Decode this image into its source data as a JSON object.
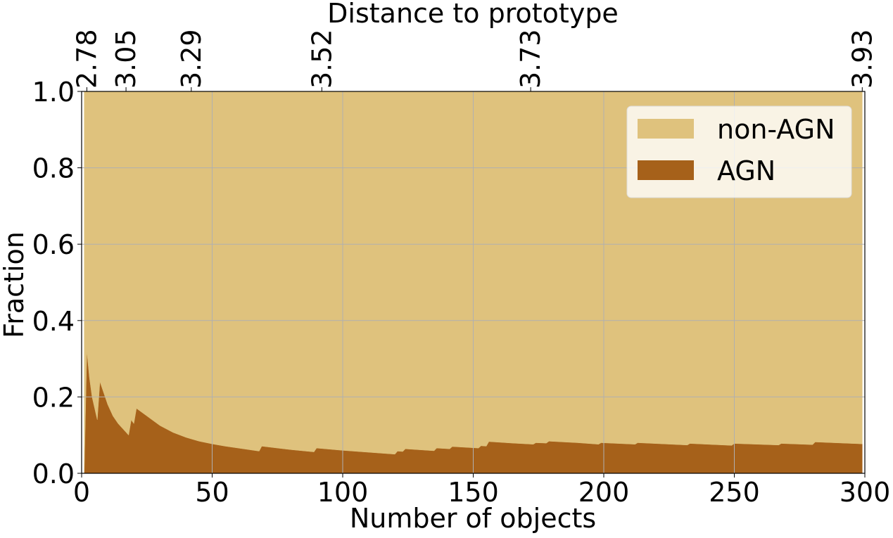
{
  "chart_data": {
    "type": "stackedarea",
    "xlabel": "Number of objects",
    "ylabel": "Fraction",
    "x2label": "Distance to prototype",
    "xlim": [
      0,
      300
    ],
    "ylim": [
      0,
      1
    ],
    "xticks": [
      0,
      50,
      100,
      150,
      200,
      250,
      300
    ],
    "yticks": [
      {
        "value": 0,
        "label": "0.0"
      },
      {
        "value": 0.2,
        "label": "0.2"
      },
      {
        "value": 0.4,
        "label": "0.4"
      },
      {
        "value": 0.6,
        "label": "0.6"
      },
      {
        "value": 0.8,
        "label": "0.8"
      },
      {
        "value": 1,
        "label": "1.0"
      }
    ],
    "x2ticks": [
      {
        "value": 2,
        "label": "2.78"
      },
      {
        "value": 17,
        "label": "3.05"
      },
      {
        "value": 42,
        "label": "3.29"
      },
      {
        "value": 92,
        "label": "3.52"
      },
      {
        "value": 172,
        "label": "3.73"
      },
      {
        "value": 299,
        "label": "3.93"
      }
    ],
    "grid": true,
    "legend": "upper right",
    "x": [
      1,
      2,
      3,
      4,
      5,
      6,
      7,
      8,
      10,
      12,
      14,
      16,
      18,
      19,
      20,
      21,
      25,
      30,
      35,
      40,
      45,
      50,
      55,
      60,
      68,
      69,
      75,
      80,
      89,
      90,
      100,
      110,
      120,
      121,
      123,
      124,
      135,
      136,
      141,
      142,
      152,
      153,
      155,
      156,
      165,
      173,
      174,
      178,
      179,
      190,
      198,
      199,
      212,
      213,
      232,
      233,
      249,
      250,
      267,
      268,
      280,
      281,
      299
    ],
    "series": [
      {
        "name": "AGN",
        "color": "#a6611a",
        "values": [
          0,
          0.32,
          0.25,
          0.2,
          0.17,
          0.14,
          0.24,
          0.22,
          0.18,
          0.15,
          0.13,
          0.115,
          0.1,
          0.14,
          0.13,
          0.17,
          0.15,
          0.125,
          0.107,
          0.094,
          0.084,
          0.077,
          0.071,
          0.066,
          0.058,
          0.071,
          0.066,
          0.062,
          0.056,
          0.066,
          0.06,
          0.055,
          0.05,
          0.058,
          0.057,
          0.064,
          0.059,
          0.066,
          0.064,
          0.07,
          0.066,
          0.072,
          0.071,
          0.083,
          0.079,
          0.076,
          0.08,
          0.079,
          0.084,
          0.08,
          0.076,
          0.08,
          0.076,
          0.08,
          0.074,
          0.078,
          0.073,
          0.078,
          0.074,
          0.078,
          0.075,
          0.082,
          0.077
        ]
      },
      {
        "name": "non-AGN",
        "color": "#dfc27d",
        "values": [
          1,
          0.68,
          0.75,
          0.8,
          0.83,
          0.86,
          0.76,
          0.78,
          0.82,
          0.85,
          0.87,
          0.885,
          0.9,
          0.86,
          0.87,
          0.83,
          0.85,
          0.875,
          0.893,
          0.906,
          0.916,
          0.923,
          0.929,
          0.934,
          0.942,
          0.929,
          0.934,
          0.938,
          0.944,
          0.934,
          0.94,
          0.945,
          0.95,
          0.942,
          0.943,
          0.936,
          0.941,
          0.934,
          0.936,
          0.93,
          0.934,
          0.928,
          0.929,
          0.917,
          0.921,
          0.924,
          0.92,
          0.921,
          0.916,
          0.92,
          0.924,
          0.92,
          0.924,
          0.92,
          0.926,
          0.922,
          0.927,
          0.922,
          0.926,
          0.922,
          0.925,
          0.918,
          0.923
        ]
      }
    ]
  }
}
